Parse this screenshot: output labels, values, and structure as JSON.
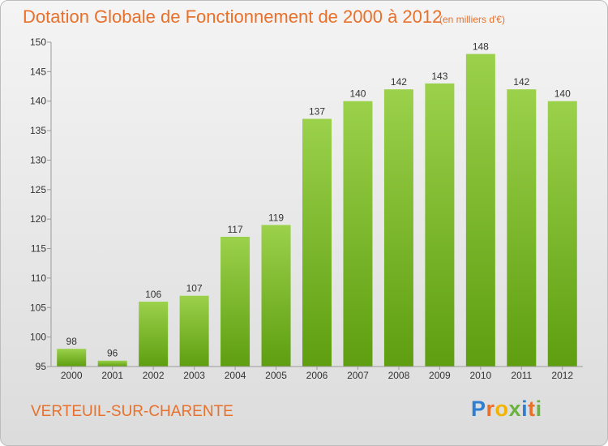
{
  "title": "Dotation Globale de Fonctionnement de 2000 à 2012",
  "subtitle": "(en milliers d'€)",
  "commune": "VERTEUIL-SUR-CHARENTE",
  "logo": {
    "letters": [
      "P",
      "r",
      "o",
      "x",
      "i",
      "t",
      "i"
    ],
    "colors": [
      "#2f7fd1",
      "#e8702a",
      "#f2b400",
      "#6bb33f",
      "#2f7fd1",
      "#e8702a",
      "#6bb33f"
    ]
  },
  "colors": {
    "bar_top": "#9bd14b",
    "bar_bottom": "#5e9e10",
    "accent": "#e8702a"
  },
  "chart_data": {
    "type": "bar",
    "title": "Dotation Globale de Fonctionnement de 2000 à 2012",
    "categories": [
      "2000",
      "2001",
      "2002",
      "2003",
      "2004",
      "2005",
      "2006",
      "2007",
      "2008",
      "2009",
      "2010",
      "2011",
      "2012"
    ],
    "values": [
      98,
      96,
      106,
      107,
      117,
      119,
      137,
      140,
      142,
      143,
      148,
      142,
      140
    ],
    "data_labels": [
      "98",
      "96",
      "106",
      "107",
      "117",
      "119",
      "137",
      "140",
      "142",
      "143",
      "148",
      "142",
      "140"
    ],
    "yticks": [
      "95",
      "100",
      "105",
      "110",
      "115",
      "120",
      "125",
      "130",
      "135",
      "140",
      "145",
      "150"
    ],
    "ylim": [
      95,
      150
    ],
    "ytick_step": 5,
    "grid": false,
    "xlabel": "",
    "ylabel": ""
  }
}
